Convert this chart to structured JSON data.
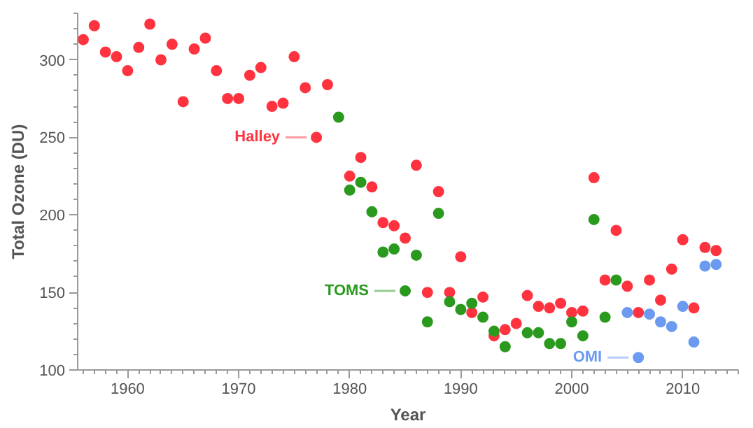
{
  "chart_data": {
    "type": "scatter",
    "xlabel": "Year",
    "ylabel": "Total Ozone (DU)",
    "marker": "circle",
    "grid": false,
    "xlim": [
      1955.5,
      2015
    ],
    "ylim": [
      100,
      330
    ],
    "xticks": [
      {
        "value": 1956,
        "label": null
      },
      {
        "value": 1957,
        "label": null
      },
      {
        "value": 1958,
        "label": null
      },
      {
        "value": 1959,
        "label": null
      },
      1960,
      {
        "value": 1961,
        "label": null
      },
      {
        "value": 1962,
        "label": null
      },
      {
        "value": 1963,
        "label": null
      },
      {
        "value": 1964,
        "label": null
      },
      {
        "value": 1965,
        "label": null
      },
      {
        "value": 1966,
        "label": null
      },
      {
        "value": 1967,
        "label": null
      },
      {
        "value": 1968,
        "label": null
      },
      {
        "value": 1969,
        "label": null
      },
      1970,
      {
        "value": 1971,
        "label": null
      },
      {
        "value": 1972,
        "label": null
      },
      {
        "value": 1973,
        "label": null
      },
      {
        "value": 1974,
        "label": null
      },
      {
        "value": 1975,
        "label": null
      },
      {
        "value": 1976,
        "label": null
      },
      {
        "value": 1977,
        "label": null
      },
      {
        "value": 1978,
        "label": null
      },
      {
        "value": 1979,
        "label": null
      },
      1980,
      {
        "value": 1981,
        "label": null
      },
      {
        "value": 1982,
        "label": null
      },
      {
        "value": 1983,
        "label": null
      },
      {
        "value": 1984,
        "label": null
      },
      {
        "value": 1985,
        "label": null
      },
      {
        "value": 1986,
        "label": null
      },
      {
        "value": 1987,
        "label": null
      },
      {
        "value": 1988,
        "label": null
      },
      {
        "value": 1989,
        "label": null
      },
      1990,
      {
        "value": 1991,
        "label": null
      },
      {
        "value": 1992,
        "label": null
      },
      {
        "value": 1993,
        "label": null
      },
      {
        "value": 1994,
        "label": null
      },
      {
        "value": 1995,
        "label": null
      },
      {
        "value": 1996,
        "label": null
      },
      {
        "value": 1997,
        "label": null
      },
      {
        "value": 1998,
        "label": null
      },
      {
        "value": 1999,
        "label": null
      },
      2000,
      {
        "value": 2001,
        "label": null
      },
      {
        "value": 2002,
        "label": null
      },
      {
        "value": 2003,
        "label": null
      },
      {
        "value": 2004,
        "label": null
      },
      {
        "value": 2005,
        "label": null
      },
      {
        "value": 2006,
        "label": null
      },
      {
        "value": 2007,
        "label": null
      },
      {
        "value": 2008,
        "label": null
      },
      {
        "value": 2009,
        "label": null
      },
      2010,
      {
        "value": 2011,
        "label": null
      },
      {
        "value": 2012,
        "label": null
      },
      {
        "value": 2013,
        "label": null
      },
      {
        "value": 2014,
        "label": null
      },
      {
        "value": 2015,
        "label": null
      }
    ],
    "yticks": [
      100,
      {
        "value": 110,
        "label": null
      },
      {
        "value": 120,
        "label": null
      },
      {
        "value": 130,
        "label": null
      },
      {
        "value": 140,
        "label": null
      },
      150,
      {
        "value": 160,
        "label": null
      },
      {
        "value": 170,
        "label": null
      },
      {
        "value": 180,
        "label": null
      },
      {
        "value": 190,
        "label": null
      },
      200,
      {
        "value": 210,
        "label": null
      },
      {
        "value": 220,
        "label": null
      },
      {
        "value": 230,
        "label": null
      },
      {
        "value": 240,
        "label": null
      },
      250,
      {
        "value": 260,
        "label": null
      },
      {
        "value": 270,
        "label": null
      },
      {
        "value": 280,
        "label": null
      },
      {
        "value": 290,
        "label": null
      },
      300,
      {
        "value": 310,
        "label": null
      },
      {
        "value": 320,
        "label": null
      },
      {
        "value": 330,
        "label": null
      }
    ],
    "series": [
      {
        "color": "#ff333f",
        "x": [
          1956,
          1957,
          1958,
          1959,
          1960,
          1961,
          1962,
          1963,
          1964,
          1965,
          1966,
          1967,
          1968,
          1969,
          1970,
          1971,
          1972,
          1973,
          1974,
          1975,
          1976,
          1977,
          1978,
          1980,
          1981,
          1982,
          1983,
          1984,
          1985,
          1986,
          1987,
          1988,
          1989,
          1990,
          1991,
          1992,
          1993,
          1994,
          1995,
          1996,
          1997,
          1998,
          1999,
          2000,
          2001,
          2002,
          2003,
          2004,
          2005,
          2006,
          2007,
          2008,
          2009,
          2010,
          2011,
          2012,
          2013
        ],
        "values": [
          313,
          322,
          305,
          302,
          293,
          308,
          323,
          300,
          310,
          273,
          307,
          314,
          293,
          275,
          275,
          290,
          295,
          270,
          272,
          302,
          282,
          250,
          284,
          225,
          237,
          218,
          195,
          193,
          185,
          232,
          150,
          215,
          150,
          173,
          137,
          147,
          122,
          126,
          130,
          148,
          141,
          140,
          143,
          137,
          138,
          224,
          158,
          190,
          154,
          137,
          158,
          145,
          165,
          184,
          140,
          179,
          177
        ]
      },
      {
        "color": "#2a9a1e",
        "x": [
          1979,
          1980,
          1981,
          1982,
          1983,
          1984,
          1985,
          1986,
          1987,
          1988,
          1989,
          1990,
          1991,
          1992,
          1993,
          1994,
          1996,
          1997,
          1998,
          1999,
          2000,
          2001,
          2002,
          2003,
          2004
        ],
        "values": [
          263,
          216,
          221,
          202,
          176,
          178,
          151,
          174,
          131,
          201,
          144,
          139,
          143,
          134,
          125,
          115,
          124,
          124,
          117,
          117,
          131,
          122,
          197,
          134,
          158
        ]
      },
      {
        "color": "#6b9bf0",
        "x": [
          2005,
          2006,
          2007,
          2008,
          2009,
          2010,
          2011,
          2012,
          2013
        ],
        "values": [
          137,
          108,
          136,
          131,
          128,
          141,
          118,
          167,
          168
        ]
      }
    ],
    "annotations": [
      {
        "text": "Halley",
        "x": 1977,
        "y": 250
      },
      {
        "text": "TOMS",
        "x": 1985,
        "y": 151
      },
      {
        "text": "OMI",
        "x": 2006,
        "y": 108
      }
    ]
  }
}
